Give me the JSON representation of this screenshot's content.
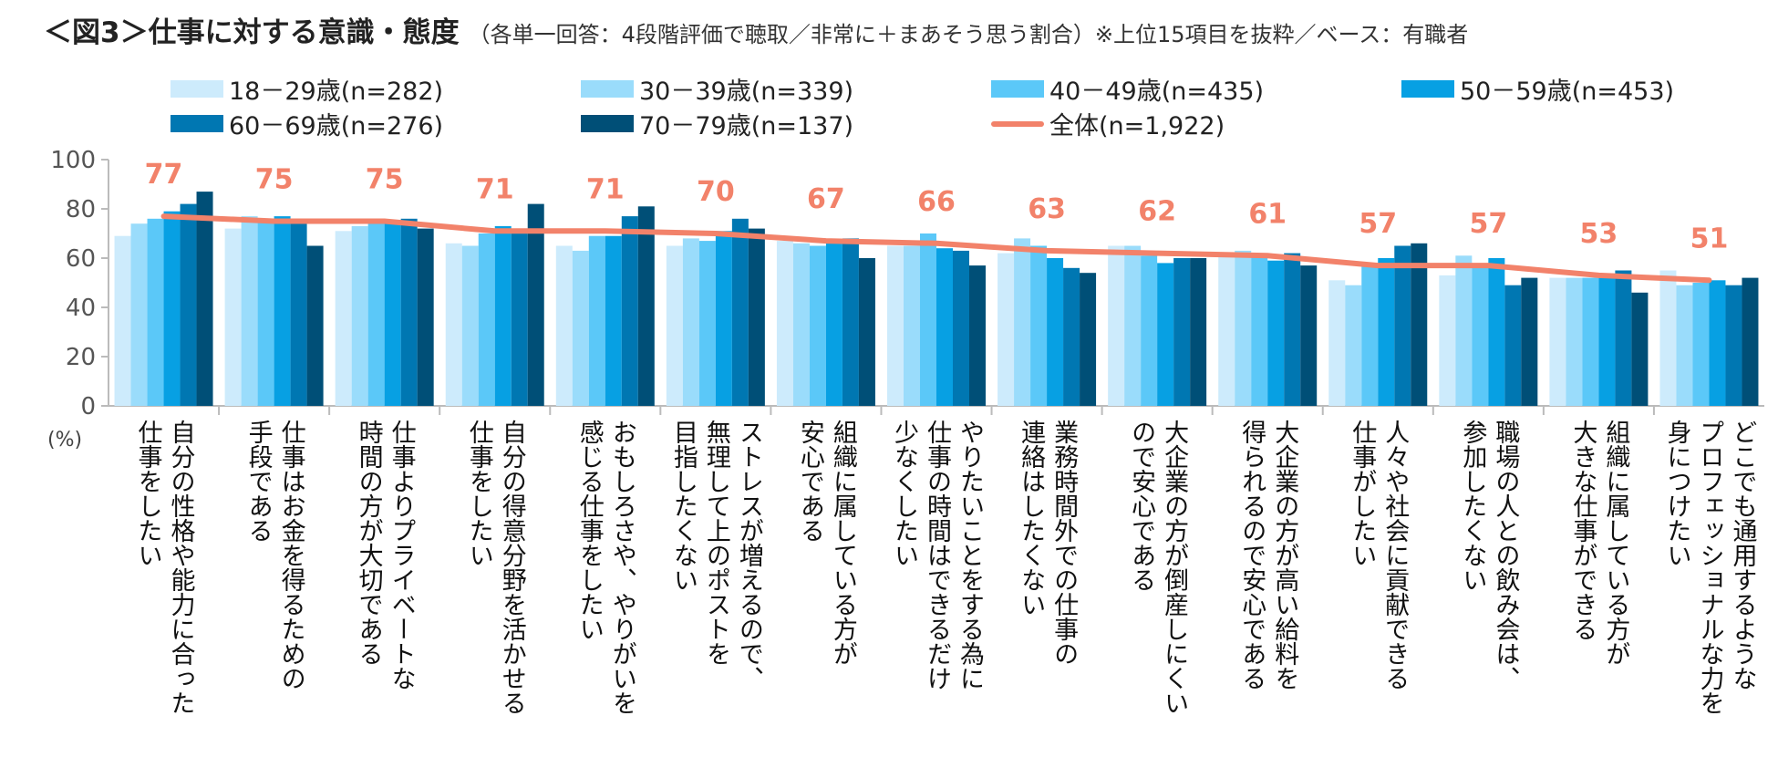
{
  "title": {
    "main": "＜図3＞仕事に対する意識・態度",
    "sub": "（各単一回答：4段階評価で聴取／非常に＋まあそう思う割合）※上位15項目を抜粋／ベース：有職者"
  },
  "chart_data": {
    "type": "bar",
    "y_unit_label": "(%)",
    "ylim": [
      0,
      100
    ],
    "yticks": [
      "0",
      "20",
      "40",
      "60",
      "80",
      "100"
    ],
    "grid": false,
    "legend_position": "top",
    "categories": [
      [
        "自分の性格や能力に合った",
        "仕事をしたい"
      ],
      [
        "仕事はお金を得るための",
        "手段である"
      ],
      [
        "仕事よりプライベートな",
        "時間の方が大切である"
      ],
      [
        "自分の得意分野を活かせる",
        "仕事をしたい"
      ],
      [
        "おもしろさや、やりがいを",
        "感じる仕事をしたい"
      ],
      [
        "ストレスが増えるので、",
        "無理して上のポストを",
        "目指したくない"
      ],
      [
        "組織に属している方が",
        "安心である"
      ],
      [
        "やりたいことをする為に",
        "仕事の時間はできるだけ",
        "少なくしたい"
      ],
      [
        "業務時間外での仕事の",
        "連絡はしたくない"
      ],
      [
        "大企業の方が倒産しにくい",
        "ので安心である"
      ],
      [
        "大企業の方が高い給料を",
        "得られるので安心である"
      ],
      [
        "人々や社会に貢献できる",
        "仕事がしたい"
      ],
      [
        "職場の人との飲み会は、",
        "参加したくない"
      ],
      [
        "組織に属している方が",
        "大きな仕事ができる"
      ],
      [
        "どこでも通用するような",
        "プロフェッショナルな力を",
        "身につけたい"
      ]
    ],
    "series": [
      {
        "name": "18－29歳(n=282)",
        "color": "#cdebfc",
        "values": [
          69,
          72,
          71,
          66,
          65,
          65,
          67,
          65,
          62,
          65,
          61,
          51,
          53,
          52,
          55
        ]
      },
      {
        "name": "30－39歳(n=339)",
        "color": "#9adcfb",
        "values": [
          74,
          77,
          73,
          65,
          63,
          68,
          66,
          65,
          68,
          65,
          63,
          49,
          61,
          52,
          49
        ]
      },
      {
        "name": "40－49歳(n=435)",
        "color": "#5bc8f8",
        "values": [
          76,
          76,
          74,
          70,
          69,
          67,
          65,
          70,
          65,
          61,
          61,
          57,
          57,
          52,
          50
        ]
      },
      {
        "name": "50－59歳(n=453)",
        "color": "#07a0e3",
        "values": [
          79,
          77,
          75,
          73,
          69,
          71,
          67,
          64,
          60,
          58,
          59,
          60,
          60,
          52,
          51
        ]
      },
      {
        "name": "60－69歳(n=276)",
        "color": "#0077b2",
        "values": [
          82,
          74,
          76,
          70,
          77,
          76,
          68,
          63,
          56,
          60,
          62,
          65,
          49,
          55,
          49
        ]
      },
      {
        "name": "70－79歳(n=137)",
        "color": "#004f77",
        "values": [
          87,
          65,
          72,
          82,
          81,
          72,
          60,
          57,
          54,
          60,
          57,
          66,
          52,
          46,
          52
        ]
      }
    ],
    "line": {
      "name": "全体(n=1,922)",
      "color": "#f2826a",
      "values": [
        77,
        75,
        75,
        71,
        71,
        70,
        67,
        66,
        63,
        62,
        61,
        57,
        57,
        53,
        51
      ]
    }
  }
}
